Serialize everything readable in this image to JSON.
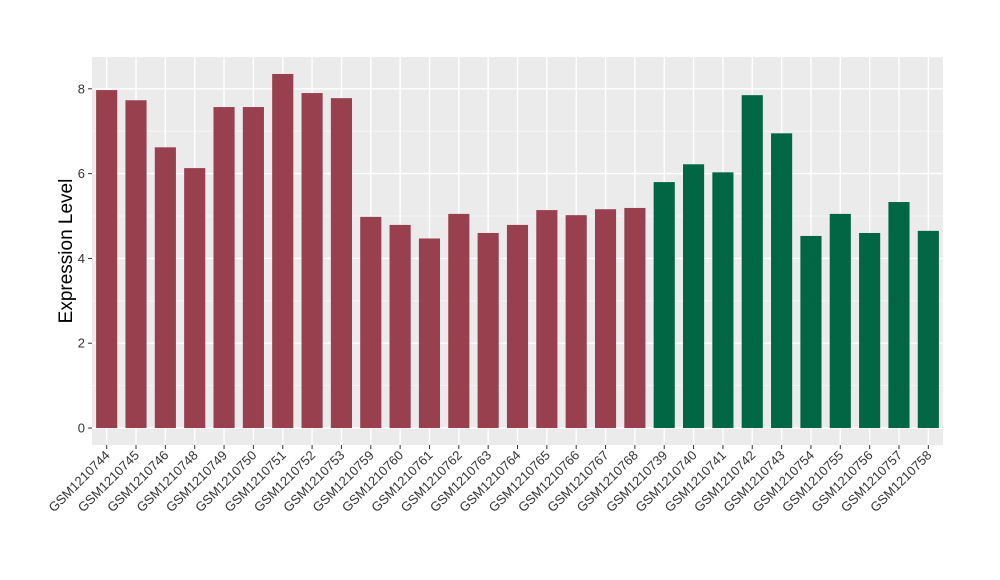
{
  "chart_data": {
    "type": "bar",
    "title": "",
    "xlabel": "",
    "ylabel": "Expression Level",
    "ylim": [
      -0.4,
      8.75
    ],
    "yticks": [
      0,
      2,
      4,
      6,
      8
    ],
    "grid": true,
    "legend": "none",
    "categories": [
      "GSM1210744",
      "GSM1210745",
      "GSM1210746",
      "GSM1210748",
      "GSM1210749",
      "GSM1210750",
      "GSM1210751",
      "GSM1210752",
      "GSM1210753",
      "GSM1210759",
      "GSM1210760",
      "GSM1210761",
      "GSM1210762",
      "GSM1210763",
      "GSM1210764",
      "GSM1210765",
      "GSM1210766",
      "GSM1210767",
      "GSM1210768",
      "GSM1210739",
      "GSM1210740",
      "GSM1210741",
      "GSM1210742",
      "GSM1210743",
      "GSM1210754",
      "GSM1210755",
      "GSM1210756",
      "GSM1210757",
      "GSM1210758"
    ],
    "values": [
      7.97,
      7.73,
      6.62,
      6.13,
      7.57,
      7.57,
      8.35,
      7.9,
      7.78,
      4.98,
      4.79,
      4.47,
      5.05,
      4.6,
      4.79,
      5.14,
      5.02,
      5.16,
      5.19,
      5.8,
      6.22,
      6.03,
      7.85,
      6.95,
      4.53,
      5.05,
      4.6,
      5.33,
      4.65
    ],
    "groups": [
      0,
      0,
      0,
      0,
      0,
      0,
      0,
      0,
      0,
      0,
      0,
      0,
      0,
      0,
      0,
      0,
      0,
      0,
      0,
      1,
      1,
      1,
      1,
      1,
      1,
      1,
      1,
      1,
      1
    ],
    "group_colors": [
      "#99404f",
      "#006644"
    ]
  }
}
